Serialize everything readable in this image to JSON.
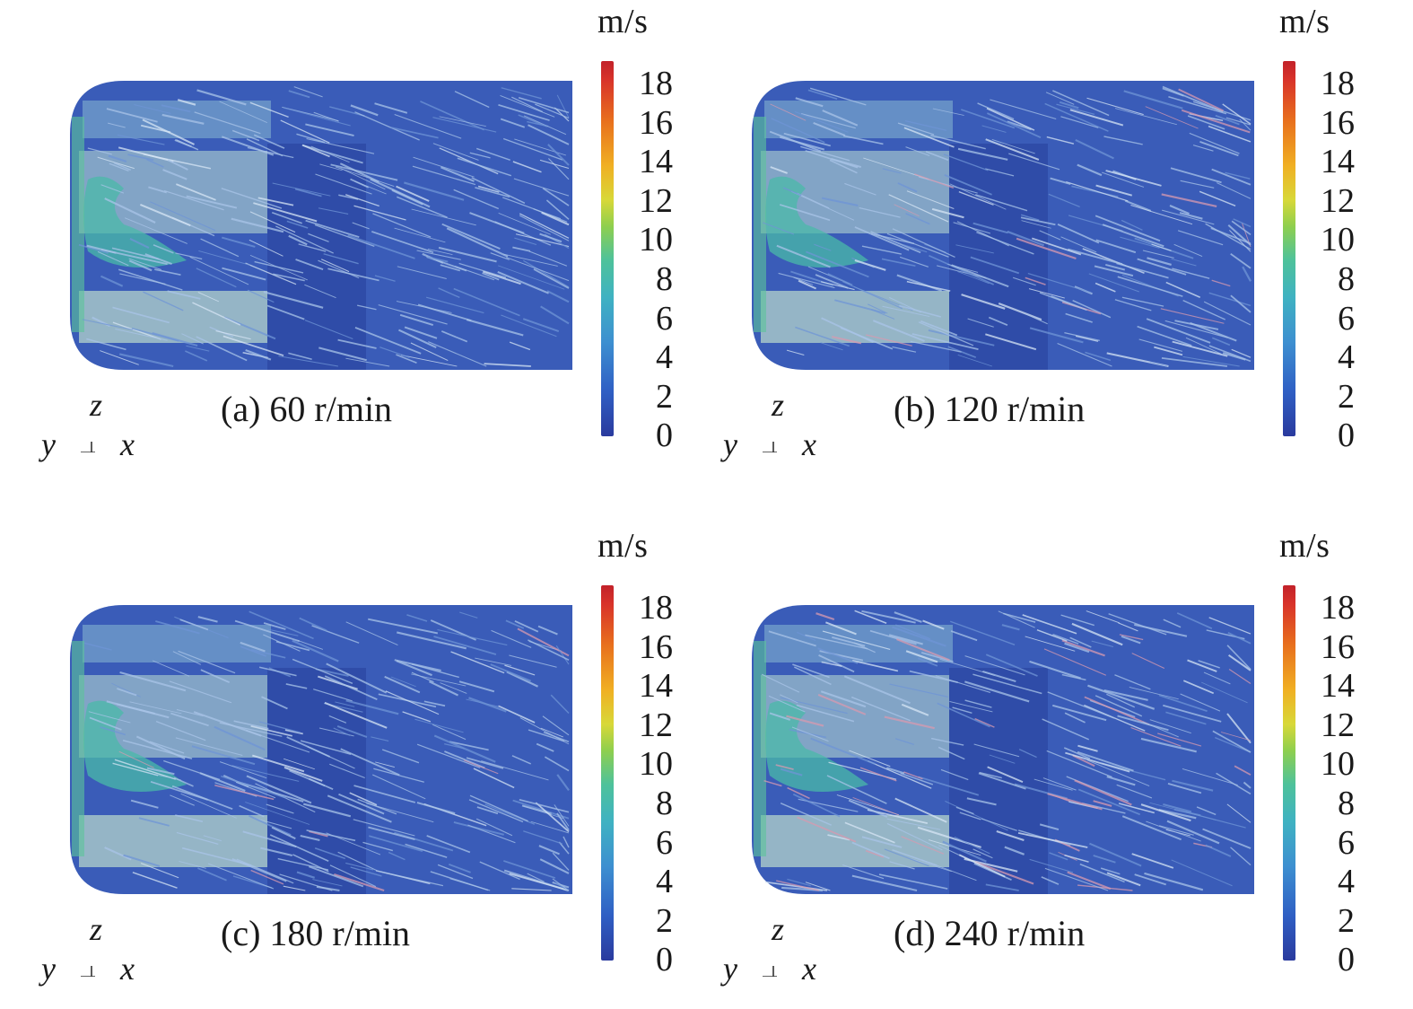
{
  "colorbar": {
    "unit": "m/s",
    "ticks": [
      "18",
      "16",
      "14",
      "12",
      "10",
      "8",
      "6",
      "4",
      "2",
      "0"
    ]
  },
  "axes": {
    "z": "z",
    "y": "y",
    "x": "x"
  },
  "panels": [
    {
      "caption": "(a) 60 r/min"
    },
    {
      "caption": "(b) 120 r/min"
    },
    {
      "caption": "(c) 180 r/min"
    },
    {
      "caption": "(d) 240 r/min"
    }
  ],
  "colors": {
    "low": "#2f4fb0",
    "mid": "#46b8b0",
    "high": "#d8332a",
    "structure": "#9fb8c4"
  }
}
